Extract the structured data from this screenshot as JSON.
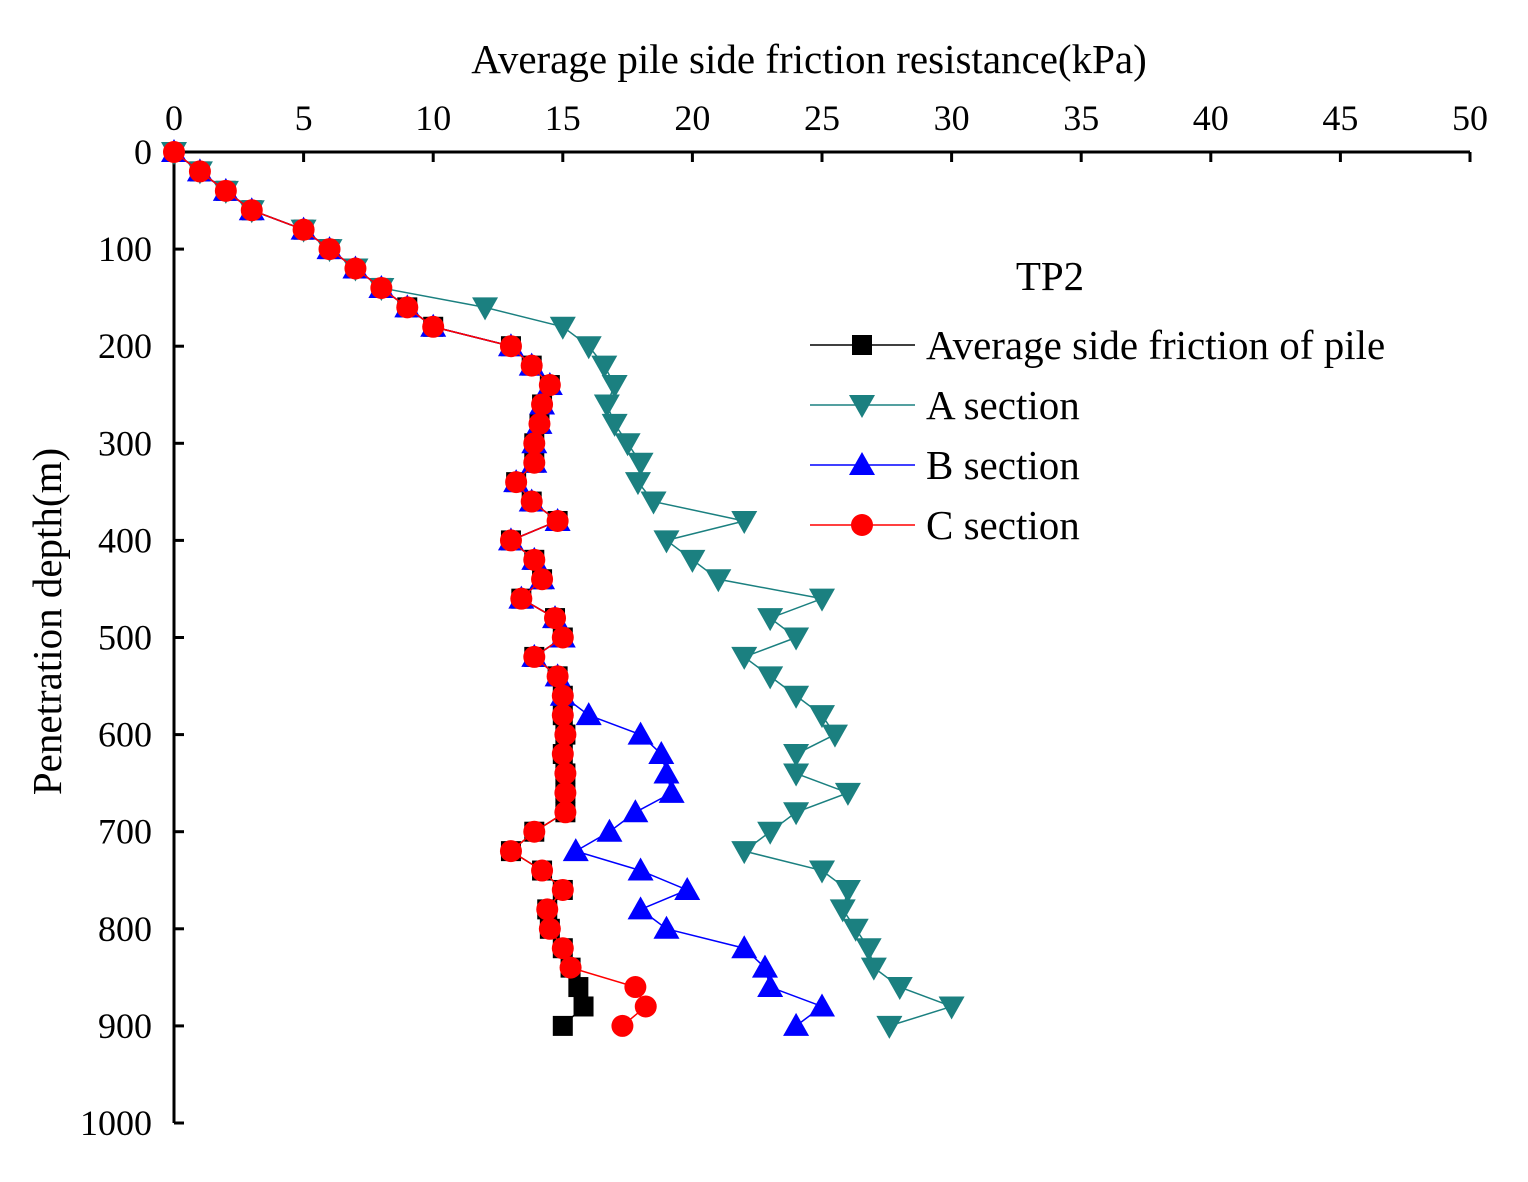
{
  "chart_data": {
    "type": "line",
    "title": "",
    "xlabel": "Average pile side friction resistance(kPa)",
    "ylabel": "Penetration depth(m)",
    "x_axis_position": "top",
    "y_axis_inverted": true,
    "xlim": [
      0,
      50
    ],
    "ylim": [
      0,
      1000
    ],
    "x_ticks": [
      0,
      5,
      10,
      15,
      20,
      25,
      30,
      35,
      40,
      45,
      50
    ],
    "y_ticks": [
      0,
      100,
      200,
      300,
      400,
      500,
      600,
      700,
      800,
      900,
      1000
    ],
    "legend": {
      "title": "TP2",
      "placement": "upper-right"
    },
    "series": [
      {
        "name": "Average side friction of pile",
        "color": "#000000",
        "marker": "square",
        "points": [
          [
            0,
            0
          ],
          [
            1,
            20
          ],
          [
            2,
            40
          ],
          [
            3,
            60
          ],
          [
            5,
            80
          ],
          [
            6,
            100
          ],
          [
            7,
            120
          ],
          [
            8,
            140
          ],
          [
            9,
            160
          ],
          [
            10,
            180
          ],
          [
            13,
            200
          ],
          [
            13.8,
            220
          ],
          [
            14.5,
            240
          ],
          [
            14.2,
            260
          ],
          [
            14.1,
            280
          ],
          [
            13.9,
            300
          ],
          [
            13.9,
            320
          ],
          [
            13.2,
            340
          ],
          [
            13.8,
            360
          ],
          [
            14.8,
            380
          ],
          [
            13,
            400
          ],
          [
            13.9,
            420
          ],
          [
            14.2,
            440
          ],
          [
            13.4,
            460
          ],
          [
            14.7,
            480
          ],
          [
            15,
            500
          ],
          [
            13.9,
            520
          ],
          [
            14.8,
            540
          ],
          [
            15,
            560
          ],
          [
            15,
            580
          ],
          [
            15.1,
            600
          ],
          [
            15,
            620
          ],
          [
            15.1,
            640
          ],
          [
            15.1,
            660
          ],
          [
            15.1,
            680
          ],
          [
            13.9,
            700
          ],
          [
            13,
            720
          ],
          [
            14.2,
            740
          ],
          [
            15,
            760
          ],
          [
            14.4,
            780
          ],
          [
            14.5,
            800
          ],
          [
            15,
            820
          ],
          [
            15.3,
            840
          ],
          [
            15.6,
            860
          ],
          [
            15.8,
            880
          ],
          [
            15,
            900
          ]
        ]
      },
      {
        "name": "A section",
        "color": "#1b8080",
        "marker": "triangle-down",
        "points": [
          [
            0,
            0
          ],
          [
            1,
            20
          ],
          [
            2,
            40
          ],
          [
            3,
            60
          ],
          [
            5,
            80
          ],
          [
            6,
            100
          ],
          [
            7,
            120
          ],
          [
            8,
            140
          ],
          [
            12,
            160
          ],
          [
            15,
            180
          ],
          [
            16,
            200
          ],
          [
            16.6,
            220
          ],
          [
            17,
            240
          ],
          [
            16.7,
            260
          ],
          [
            17,
            280
          ],
          [
            17.5,
            300
          ],
          [
            18,
            320
          ],
          [
            17.9,
            340
          ],
          [
            18.5,
            360
          ],
          [
            22,
            380
          ],
          [
            19,
            400
          ],
          [
            20,
            420
          ],
          [
            21,
            440
          ],
          [
            25,
            460
          ],
          [
            23,
            480
          ],
          [
            24,
            500
          ],
          [
            22,
            520
          ],
          [
            23,
            540
          ],
          [
            24,
            560
          ],
          [
            25,
            580
          ],
          [
            25.5,
            600
          ],
          [
            24,
            620
          ],
          [
            24,
            640
          ],
          [
            26,
            660
          ],
          [
            24,
            680
          ],
          [
            23,
            700
          ],
          [
            22,
            720
          ],
          [
            25,
            740
          ],
          [
            26,
            760
          ],
          [
            25.8,
            780
          ],
          [
            26.3,
            800
          ],
          [
            26.8,
            820
          ],
          [
            27,
            840
          ],
          [
            28,
            860
          ],
          [
            30,
            880
          ],
          [
            27.6,
            900
          ]
        ]
      },
      {
        "name": "B section",
        "color": "#0000ff",
        "marker": "triangle-up",
        "points": [
          [
            0,
            0
          ],
          [
            1,
            20
          ],
          [
            2,
            40
          ],
          [
            3,
            60
          ],
          [
            5,
            80
          ],
          [
            6,
            100
          ],
          [
            7,
            120
          ],
          [
            8,
            140
          ],
          [
            9,
            160
          ],
          [
            10,
            180
          ],
          [
            13,
            200
          ],
          [
            13.8,
            220
          ],
          [
            14.5,
            240
          ],
          [
            14.2,
            260
          ],
          [
            14.1,
            280
          ],
          [
            13.9,
            300
          ],
          [
            13.9,
            320
          ],
          [
            13.2,
            340
          ],
          [
            13.8,
            360
          ],
          [
            14.8,
            380
          ],
          [
            13,
            400
          ],
          [
            13.9,
            420
          ],
          [
            14.2,
            440
          ],
          [
            13.4,
            460
          ],
          [
            14.7,
            480
          ],
          [
            15,
            500
          ],
          [
            13.9,
            520
          ],
          [
            14.8,
            540
          ],
          [
            15,
            560
          ],
          [
            16,
            580
          ],
          [
            18,
            600
          ],
          [
            18.8,
            620
          ],
          [
            19,
            640
          ],
          [
            19.2,
            660
          ],
          [
            17.8,
            680
          ],
          [
            16.8,
            700
          ],
          [
            15.5,
            720
          ],
          [
            18,
            740
          ],
          [
            19.8,
            760
          ],
          [
            18,
            780
          ],
          [
            19,
            800
          ],
          [
            22,
            820
          ],
          [
            22.8,
            840
          ],
          [
            23,
            860
          ],
          [
            25,
            880
          ],
          [
            24,
            900
          ]
        ]
      },
      {
        "name": "C section",
        "color": "#ff0000",
        "marker": "circle",
        "points": [
          [
            0,
            0
          ],
          [
            1,
            20
          ],
          [
            2,
            40
          ],
          [
            3,
            60
          ],
          [
            5,
            80
          ],
          [
            6,
            100
          ],
          [
            7,
            120
          ],
          [
            8,
            140
          ],
          [
            9,
            160
          ],
          [
            10,
            180
          ],
          [
            13,
            200
          ],
          [
            13.8,
            220
          ],
          [
            14.5,
            240
          ],
          [
            14.2,
            260
          ],
          [
            14.1,
            280
          ],
          [
            13.9,
            300
          ],
          [
            13.9,
            320
          ],
          [
            13.2,
            340
          ],
          [
            13.8,
            360
          ],
          [
            14.8,
            380
          ],
          [
            13,
            400
          ],
          [
            13.9,
            420
          ],
          [
            14.2,
            440
          ],
          [
            13.4,
            460
          ],
          [
            14.7,
            480
          ],
          [
            15,
            500
          ],
          [
            13.9,
            520
          ],
          [
            14.8,
            540
          ],
          [
            15,
            560
          ],
          [
            15,
            580
          ],
          [
            15.1,
            600
          ],
          [
            15,
            620
          ],
          [
            15.1,
            640
          ],
          [
            15.1,
            660
          ],
          [
            15.1,
            680
          ],
          [
            13.9,
            700
          ],
          [
            13,
            720
          ],
          [
            14.2,
            740
          ],
          [
            15,
            760
          ],
          [
            14.4,
            780
          ],
          [
            14.5,
            800
          ],
          [
            15,
            820
          ],
          [
            15.3,
            840
          ],
          [
            17.8,
            860
          ],
          [
            18.2,
            880
          ],
          [
            17.3,
            900
          ]
        ]
      }
    ]
  }
}
